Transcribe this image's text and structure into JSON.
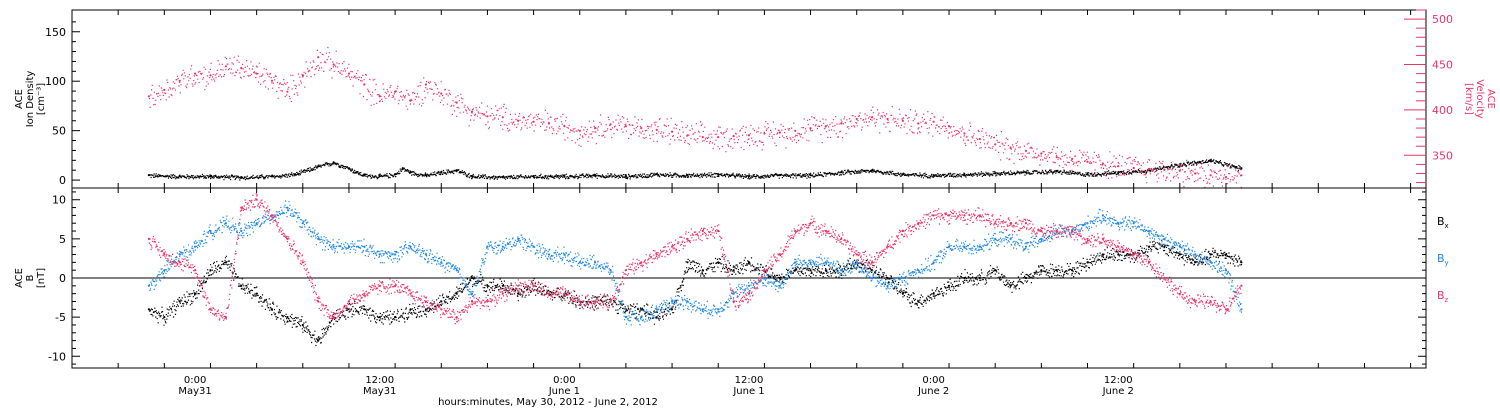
{
  "chart_data": [
    {
      "type": "scatter",
      "panel": "top",
      "ylabel_lines": [
        "ACE",
        "Ion Density",
        "[cm⁻³]"
      ],
      "ylim": [
        -8,
        172
      ],
      "yticks": [
        0,
        50,
        100,
        150
      ],
      "y2label_lines": [
        "ACE",
        "Velocity",
        "[km/s]"
      ],
      "y2lim": [
        314,
        510
      ],
      "y2ticks": [
        350,
        400,
        450,
        500
      ],
      "series": [
        {
          "name": "",
          "axis": "left",
          "color": "#000000",
          "x": [
            -3,
            -1,
            1,
            3,
            5,
            6.5,
            8,
            9,
            10,
            10.5,
            11,
            12,
            13,
            13.5,
            14,
            15,
            16,
            17,
            18,
            20,
            22,
            24,
            26,
            28,
            30,
            32,
            34,
            36,
            38,
            40,
            42,
            44,
            46,
            48,
            50,
            52,
            54,
            56,
            58,
            60,
            62,
            64,
            66,
            68
          ],
          "values": [
            5,
            4,
            4,
            3,
            4,
            6,
            14,
            18,
            12,
            8,
            5,
            4,
            6,
            12,
            8,
            5,
            8,
            10,
            4,
            3,
            4,
            4,
            5,
            4,
            6,
            5,
            6,
            4,
            5,
            5,
            8,
            10,
            6,
            5,
            6,
            7,
            8,
            9,
            6,
            8,
            10,
            16,
            20,
            12
          ]
        },
        {
          "name": "",
          "axis": "right",
          "color": "#e8346a",
          "x": [
            -3,
            -2,
            -1,
            0,
            1,
            2,
            3,
            4,
            5,
            6,
            7,
            8,
            9,
            10,
            11,
            12,
            13,
            14,
            15,
            16,
            17,
            18,
            19,
            20,
            21,
            22,
            23,
            24,
            25,
            26,
            27,
            28,
            29,
            30,
            31,
            32,
            33,
            34,
            35,
            36,
            37,
            38,
            39,
            40,
            41,
            42,
            43,
            44,
            45,
            46,
            47,
            48,
            49,
            50,
            51,
            52,
            53,
            54,
            55,
            56,
            57,
            58,
            59,
            60,
            61,
            62,
            63,
            64,
            65,
            66,
            67,
            68
          ],
          "values": [
            415,
            422,
            432,
            440,
            438,
            448,
            446,
            440,
            432,
            420,
            438,
            458,
            450,
            440,
            428,
            415,
            420,
            410,
            428,
            418,
            408,
            398,
            393,
            392,
            388,
            387,
            385,
            382,
            377,
            380,
            384,
            382,
            380,
            378,
            376,
            372,
            370,
            370,
            371,
            372,
            374,
            375,
            377,
            380,
            382,
            385,
            390,
            392,
            390,
            388,
            385,
            387,
            382,
            374,
            368,
            362,
            358,
            355,
            352,
            348,
            346,
            343,
            341,
            338,
            336,
            335,
            334,
            333,
            330,
            328,
            326,
            328
          ]
        }
      ]
    },
    {
      "type": "scatter",
      "panel": "bottom",
      "ylabel_lines": [
        "ACE",
        "B",
        "[nT]"
      ],
      "ylim": [
        -11.5,
        11.5
      ],
      "yticks": [
        -10,
        -5,
        0,
        5,
        10
      ],
      "series": [
        {
          "name": "Bx",
          "color": "#000000",
          "x": [
            -3,
            -2,
            -1,
            0,
            1,
            2,
            3,
            4,
            5,
            6,
            7,
            8,
            9,
            10,
            11,
            12,
            13,
            14,
            15,
            16,
            17,
            18,
            19,
            20,
            21,
            22,
            23,
            24,
            25,
            26,
            27,
            28,
            29,
            30,
            31,
            32,
            33,
            34,
            35,
            36,
            37,
            38,
            39,
            40,
            41,
            42,
            43,
            44,
            45,
            46,
            47,
            48,
            49,
            50,
            51,
            52,
            53,
            54,
            55,
            56,
            57,
            58,
            59,
            60,
            61,
            62,
            63,
            64,
            65,
            66,
            67,
            68
          ],
          "values": [
            -4,
            -5,
            -3,
            -2,
            1,
            2,
            -1,
            -2,
            -4,
            -5,
            -6,
            -8,
            -5,
            -4,
            -4,
            -5,
            -5,
            -4,
            -4,
            -3,
            -2,
            0,
            -1,
            -1,
            -2,
            -1,
            -2,
            -2,
            -3,
            -3,
            -3,
            -4,
            -4,
            -5,
            -4,
            2,
            1,
            2,
            1,
            2,
            1,
            0,
            1,
            1,
            1,
            1,
            2,
            1,
            0,
            -2,
            -3,
            -2,
            -1,
            0,
            0,
            1,
            -1,
            0,
            1,
            1,
            1,
            2,
            3,
            3,
            3,
            4,
            4,
            3,
            2,
            3,
            3,
            2
          ]
        },
        {
          "name": "By",
          "color": "#1e88e5",
          "x": [
            -3,
            -2,
            -1,
            0,
            1,
            2,
            3,
            4,
            5,
            6,
            7,
            8,
            9,
            10,
            11,
            12,
            13,
            14,
            15,
            16,
            17,
            18,
            19,
            20,
            21,
            22,
            23,
            24,
            25,
            26,
            27,
            28,
            29,
            30,
            31,
            32,
            33,
            34,
            35,
            36,
            37,
            38,
            39,
            40,
            41,
            42,
            43,
            44,
            45,
            46,
            47,
            48,
            49,
            50,
            51,
            52,
            53,
            54,
            55,
            56,
            57,
            58,
            59,
            60,
            61,
            62,
            63,
            64,
            65,
            66,
            67,
            68
          ],
          "values": [
            -1,
            1,
            3,
            4,
            6,
            7,
            6,
            7,
            8,
            9,
            7,
            5,
            4,
            4,
            4,
            3,
            3,
            4,
            3,
            2,
            1,
            -2,
            4,
            4,
            5,
            4,
            3,
            3,
            2,
            2,
            1,
            -5,
            -5,
            -4,
            -3,
            -3,
            -4,
            -4,
            -2,
            -1,
            0,
            -1,
            2,
            2,
            2,
            1,
            2,
            0,
            -1,
            0,
            1,
            2,
            4,
            4,
            4,
            5,
            5,
            4,
            5,
            6,
            6,
            7,
            8,
            7,
            7,
            6,
            5,
            4,
            3,
            2,
            1,
            -4
          ]
        },
        {
          "name": "Bz",
          "color": "#e8346a",
          "x": [
            -3,
            -2,
            -1,
            0,
            1,
            2,
            3,
            4,
            5,
            6,
            7,
            8,
            9,
            10,
            11,
            12,
            13,
            14,
            15,
            16,
            17,
            18,
            19,
            20,
            21,
            22,
            23,
            24,
            25,
            26,
            27,
            28,
            29,
            30,
            31,
            32,
            33,
            34,
            35,
            36,
            37,
            38,
            39,
            40,
            41,
            42,
            43,
            44,
            45,
            46,
            47,
            48,
            49,
            50,
            51,
            52,
            53,
            54,
            55,
            56,
            57,
            58,
            59,
            60,
            61,
            62,
            63,
            64,
            65,
            66,
            67,
            68
          ],
          "values": [
            5,
            3,
            2,
            1,
            -4,
            -5,
            9,
            10,
            8,
            5,
            2,
            -3,
            -5,
            -3,
            -2,
            -1,
            -1,
            -2,
            -3,
            -4,
            -5,
            -3,
            -3,
            -2,
            -1,
            -1,
            -2,
            -2,
            -3,
            -3,
            -3,
            1,
            2,
            3,
            4,
            5,
            6,
            6,
            -3,
            -2,
            1,
            3,
            6,
            7,
            6,
            5,
            3,
            2,
            4,
            6,
            7,
            8,
            8,
            8,
            8,
            7,
            7,
            7,
            6,
            6,
            6,
            5,
            5,
            4,
            3,
            2,
            0,
            -2,
            -3,
            -3,
            -4,
            -1
          ]
        }
      ]
    }
  ],
  "x_axis": {
    "xlim": [
      -8,
      80
    ],
    "major_ticks": [
      0,
      12,
      24,
      36,
      48,
      60
    ],
    "tick_labels": [
      {
        "x": 0,
        "time": "0:00",
        "day": "May31"
      },
      {
        "x": 12,
        "time": "12:00",
        "day": "May31"
      },
      {
        "x": 24,
        "time": "0:00",
        "day": "June 1"
      },
      {
        "x": 36,
        "time": "12:00",
        "day": "June 1"
      },
      {
        "x": 48,
        "time": "0:00",
        "day": "June 2"
      },
      {
        "x": 60,
        "time": "12:00",
        "day": "June 2"
      }
    ],
    "title": "hours:minutes, May 30, 2012 - June  2, 2012"
  },
  "legend": {
    "placement": "right",
    "items": [
      {
        "label": "B",
        "sub": "x",
        "color": "#000000"
      },
      {
        "label": "B",
        "sub": "y",
        "color": "#1e88e5"
      },
      {
        "label": "B",
        "sub": "z",
        "color": "#e8346a"
      }
    ]
  }
}
